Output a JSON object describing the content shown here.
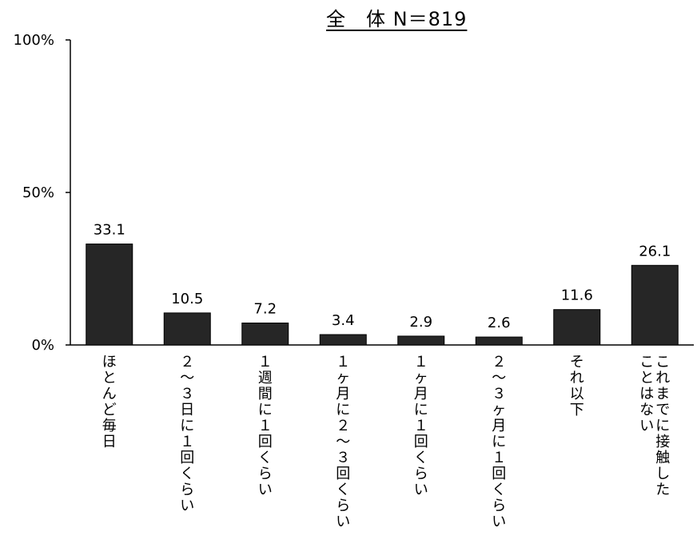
{
  "chart_data": {
    "type": "bar",
    "title": "全　体 N＝819",
    "y_ticks": [
      "0%",
      "50%",
      "100%"
    ],
    "ylim": [
      0,
      100
    ],
    "grid": false,
    "bar_color": "#262626",
    "categories": [
      [
        "ほとんど毎日"
      ],
      [
        "２～３日に１回くらい"
      ],
      [
        "１週間に１回くらい"
      ],
      [
        "１ヶ月に２～３回くらい"
      ],
      [
        "１ヶ月に１回くらい"
      ],
      [
        "２～３ヶ月に１回くらい"
      ],
      [
        "それ以下"
      ],
      [
        "これまでに接触した",
        "ことはない"
      ]
    ],
    "values": [
      33.1,
      10.5,
      7.2,
      3.4,
      2.9,
      2.6,
      11.6,
      26.1
    ],
    "value_labels": [
      "33.1",
      "10.5",
      "7.2",
      "3.4",
      "2.9",
      "2.6",
      "11.6",
      "26.1"
    ]
  }
}
